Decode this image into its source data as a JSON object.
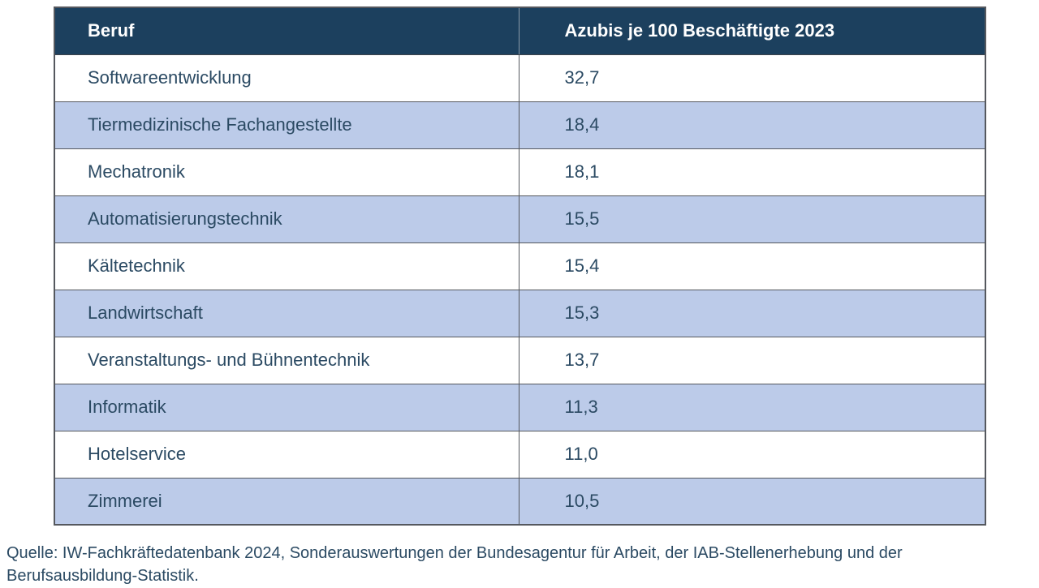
{
  "table": {
    "columns": [
      "Beruf",
      "Azubis je 100 Beschäftigte 2023"
    ],
    "rows": [
      {
        "beruf": "Softwareentwicklung",
        "value": "32,7"
      },
      {
        "beruf": "Tiermedizinische Fachangestellte",
        "value": "18,4"
      },
      {
        "beruf": "Mechatronik",
        "value": "18,1"
      },
      {
        "beruf": "Automatisierungstechnik",
        "value": "15,5"
      },
      {
        "beruf": "Kältetechnik",
        "value": "15,4"
      },
      {
        "beruf": "Landwirtschaft",
        "value": "15,3"
      },
      {
        "beruf": "Veranstaltungs- und Bühnentechnik",
        "value": "13,7"
      },
      {
        "beruf": "Informatik",
        "value": "11,3"
      },
      {
        "beruf": "Hotelservice",
        "value": "11,0"
      },
      {
        "beruf": "Zimmerei",
        "value": "10,5"
      }
    ]
  },
  "footer": {
    "source": "Quelle: IW-Fachkräftedatenbank 2024, Sonderauswertungen der Bundesagentur für Arbeit, der IAB-Stellenerhebung und der Berufsausbildung-Statistik."
  },
  "colors": {
    "header_bg": "#1c405e",
    "header_text": "#ffffff",
    "row_shade": "#bccbe9",
    "row_plain": "#ffffff",
    "cell_text": "#2b4a63",
    "border": "#55585e"
  },
  "chart_data": {
    "type": "table",
    "title": "",
    "columns": [
      "Beruf",
      "Azubis je 100 Beschäftigte 2023"
    ],
    "categories": [
      "Softwareentwicklung",
      "Tiermedizinische Fachangestellte",
      "Mechatronik",
      "Automatisierungstechnik",
      "Kältetechnik",
      "Landwirtschaft",
      "Veranstaltungs- und Bühnentechnik",
      "Informatik",
      "Hotelservice",
      "Zimmerei"
    ],
    "values": [
      32.7,
      18.4,
      18.1,
      15.5,
      15.4,
      15.3,
      13.7,
      11.3,
      11.0,
      10.5
    ],
    "source": "Quelle: IW-Fachkräftedatenbank 2024, Sonderauswertungen der Bundesagentur für Arbeit, der IAB-Stellenerhebung und der Berufsausbildung-Statistik.",
    "layout_hints": {
      "zebra_striping": true,
      "header_style": "dark-navy",
      "decimal_separator": ","
    }
  }
}
